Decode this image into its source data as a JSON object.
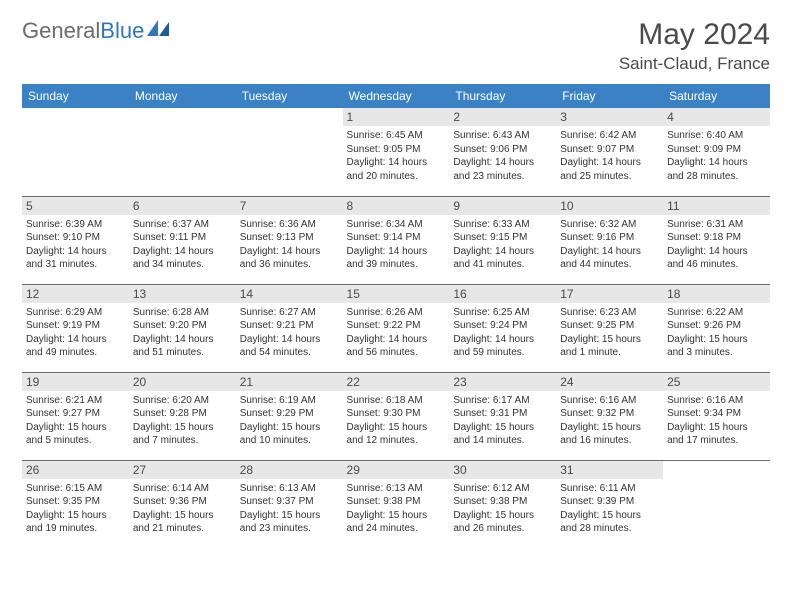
{
  "logo": {
    "text_gray": "General",
    "text_blue": "Blue"
  },
  "title": "May 2024",
  "location": "Saint-Claud, France",
  "colors": {
    "header_bg": "#3b82c4",
    "header_text": "#ffffff",
    "daybar_bg": "#e7e7e7",
    "border": "#6b6b6b",
    "text": "#333333",
    "title_text": "#4a4a4a",
    "logo_gray": "#6b6b6b",
    "logo_blue": "#2f78bd"
  },
  "weekdays": [
    "Sunday",
    "Monday",
    "Tuesday",
    "Wednesday",
    "Thursday",
    "Friday",
    "Saturday"
  ],
  "weeks": [
    [
      {
        "day": "",
        "sunrise": "",
        "sunset": "",
        "daylight": ""
      },
      {
        "day": "",
        "sunrise": "",
        "sunset": "",
        "daylight": ""
      },
      {
        "day": "",
        "sunrise": "",
        "sunset": "",
        "daylight": ""
      },
      {
        "day": "1",
        "sunrise": "Sunrise: 6:45 AM",
        "sunset": "Sunset: 9:05 PM",
        "daylight": "Daylight: 14 hours and 20 minutes."
      },
      {
        "day": "2",
        "sunrise": "Sunrise: 6:43 AM",
        "sunset": "Sunset: 9:06 PM",
        "daylight": "Daylight: 14 hours and 23 minutes."
      },
      {
        "day": "3",
        "sunrise": "Sunrise: 6:42 AM",
        "sunset": "Sunset: 9:07 PM",
        "daylight": "Daylight: 14 hours and 25 minutes."
      },
      {
        "day": "4",
        "sunrise": "Sunrise: 6:40 AM",
        "sunset": "Sunset: 9:09 PM",
        "daylight": "Daylight: 14 hours and 28 minutes."
      }
    ],
    [
      {
        "day": "5",
        "sunrise": "Sunrise: 6:39 AM",
        "sunset": "Sunset: 9:10 PM",
        "daylight": "Daylight: 14 hours and 31 minutes."
      },
      {
        "day": "6",
        "sunrise": "Sunrise: 6:37 AM",
        "sunset": "Sunset: 9:11 PM",
        "daylight": "Daylight: 14 hours and 34 minutes."
      },
      {
        "day": "7",
        "sunrise": "Sunrise: 6:36 AM",
        "sunset": "Sunset: 9:13 PM",
        "daylight": "Daylight: 14 hours and 36 minutes."
      },
      {
        "day": "8",
        "sunrise": "Sunrise: 6:34 AM",
        "sunset": "Sunset: 9:14 PM",
        "daylight": "Daylight: 14 hours and 39 minutes."
      },
      {
        "day": "9",
        "sunrise": "Sunrise: 6:33 AM",
        "sunset": "Sunset: 9:15 PM",
        "daylight": "Daylight: 14 hours and 41 minutes."
      },
      {
        "day": "10",
        "sunrise": "Sunrise: 6:32 AM",
        "sunset": "Sunset: 9:16 PM",
        "daylight": "Daylight: 14 hours and 44 minutes."
      },
      {
        "day": "11",
        "sunrise": "Sunrise: 6:31 AM",
        "sunset": "Sunset: 9:18 PM",
        "daylight": "Daylight: 14 hours and 46 minutes."
      }
    ],
    [
      {
        "day": "12",
        "sunrise": "Sunrise: 6:29 AM",
        "sunset": "Sunset: 9:19 PM",
        "daylight": "Daylight: 14 hours and 49 minutes."
      },
      {
        "day": "13",
        "sunrise": "Sunrise: 6:28 AM",
        "sunset": "Sunset: 9:20 PM",
        "daylight": "Daylight: 14 hours and 51 minutes."
      },
      {
        "day": "14",
        "sunrise": "Sunrise: 6:27 AM",
        "sunset": "Sunset: 9:21 PM",
        "daylight": "Daylight: 14 hours and 54 minutes."
      },
      {
        "day": "15",
        "sunrise": "Sunrise: 6:26 AM",
        "sunset": "Sunset: 9:22 PM",
        "daylight": "Daylight: 14 hours and 56 minutes."
      },
      {
        "day": "16",
        "sunrise": "Sunrise: 6:25 AM",
        "sunset": "Sunset: 9:24 PM",
        "daylight": "Daylight: 14 hours and 59 minutes."
      },
      {
        "day": "17",
        "sunrise": "Sunrise: 6:23 AM",
        "sunset": "Sunset: 9:25 PM",
        "daylight": "Daylight: 15 hours and 1 minute."
      },
      {
        "day": "18",
        "sunrise": "Sunrise: 6:22 AM",
        "sunset": "Sunset: 9:26 PM",
        "daylight": "Daylight: 15 hours and 3 minutes."
      }
    ],
    [
      {
        "day": "19",
        "sunrise": "Sunrise: 6:21 AM",
        "sunset": "Sunset: 9:27 PM",
        "daylight": "Daylight: 15 hours and 5 minutes."
      },
      {
        "day": "20",
        "sunrise": "Sunrise: 6:20 AM",
        "sunset": "Sunset: 9:28 PM",
        "daylight": "Daylight: 15 hours and 7 minutes."
      },
      {
        "day": "21",
        "sunrise": "Sunrise: 6:19 AM",
        "sunset": "Sunset: 9:29 PM",
        "daylight": "Daylight: 15 hours and 10 minutes."
      },
      {
        "day": "22",
        "sunrise": "Sunrise: 6:18 AM",
        "sunset": "Sunset: 9:30 PM",
        "daylight": "Daylight: 15 hours and 12 minutes."
      },
      {
        "day": "23",
        "sunrise": "Sunrise: 6:17 AM",
        "sunset": "Sunset: 9:31 PM",
        "daylight": "Daylight: 15 hours and 14 minutes."
      },
      {
        "day": "24",
        "sunrise": "Sunrise: 6:16 AM",
        "sunset": "Sunset: 9:32 PM",
        "daylight": "Daylight: 15 hours and 16 minutes."
      },
      {
        "day": "25",
        "sunrise": "Sunrise: 6:16 AM",
        "sunset": "Sunset: 9:34 PM",
        "daylight": "Daylight: 15 hours and 17 minutes."
      }
    ],
    [
      {
        "day": "26",
        "sunrise": "Sunrise: 6:15 AM",
        "sunset": "Sunset: 9:35 PM",
        "daylight": "Daylight: 15 hours and 19 minutes."
      },
      {
        "day": "27",
        "sunrise": "Sunrise: 6:14 AM",
        "sunset": "Sunset: 9:36 PM",
        "daylight": "Daylight: 15 hours and 21 minutes."
      },
      {
        "day": "28",
        "sunrise": "Sunrise: 6:13 AM",
        "sunset": "Sunset: 9:37 PM",
        "daylight": "Daylight: 15 hours and 23 minutes."
      },
      {
        "day": "29",
        "sunrise": "Sunrise: 6:13 AM",
        "sunset": "Sunset: 9:38 PM",
        "daylight": "Daylight: 15 hours and 24 minutes."
      },
      {
        "day": "30",
        "sunrise": "Sunrise: 6:12 AM",
        "sunset": "Sunset: 9:38 PM",
        "daylight": "Daylight: 15 hours and 26 minutes."
      },
      {
        "day": "31",
        "sunrise": "Sunrise: 6:11 AM",
        "sunset": "Sunset: 9:39 PM",
        "daylight": "Daylight: 15 hours and 28 minutes."
      },
      {
        "day": "",
        "sunrise": "",
        "sunset": "",
        "daylight": ""
      }
    ]
  ]
}
